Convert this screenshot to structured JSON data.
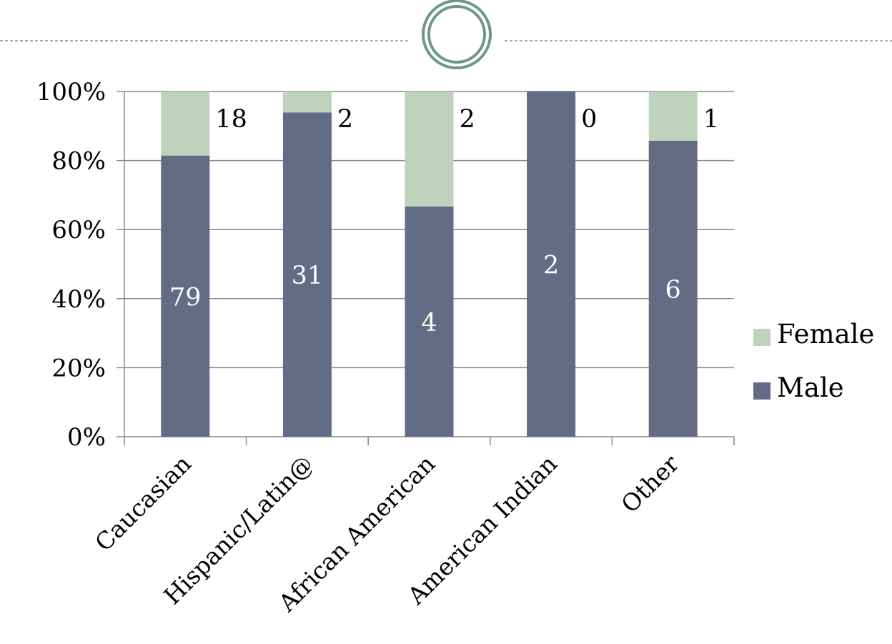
{
  "colors": {
    "female": "#BDD3BB",
    "male": "#636B85",
    "grid": "#888888",
    "divider": "#7A9A95",
    "ornament_outer": "#6F958F",
    "ornament_inner": "#6F958F",
    "label_inside": "#FFFFFF",
    "label_outside": "#000000"
  },
  "chart_data": {
    "type": "bar",
    "stacked": true,
    "percent_stacked": true,
    "categories": [
      "Caucasian",
      "Hispanic/Latin@",
      "African American",
      "American Indian",
      "Other"
    ],
    "series": [
      {
        "name": "Male",
        "values": [
          79,
          31,
          4,
          2,
          6
        ],
        "color": "#636B85"
      },
      {
        "name": "Female",
        "values": [
          18,
          2,
          2,
          0,
          1
        ],
        "color": "#BDD3BB"
      }
    ],
    "y_ticks": [
      "0%",
      "20%",
      "40%",
      "60%",
      "80%",
      "100%"
    ],
    "ylim": [
      0,
      100
    ],
    "grid": true,
    "legend": {
      "placement": "right",
      "entries": [
        "Female",
        "Male"
      ]
    },
    "title": "",
    "xlabel": "",
    "ylabel": ""
  }
}
